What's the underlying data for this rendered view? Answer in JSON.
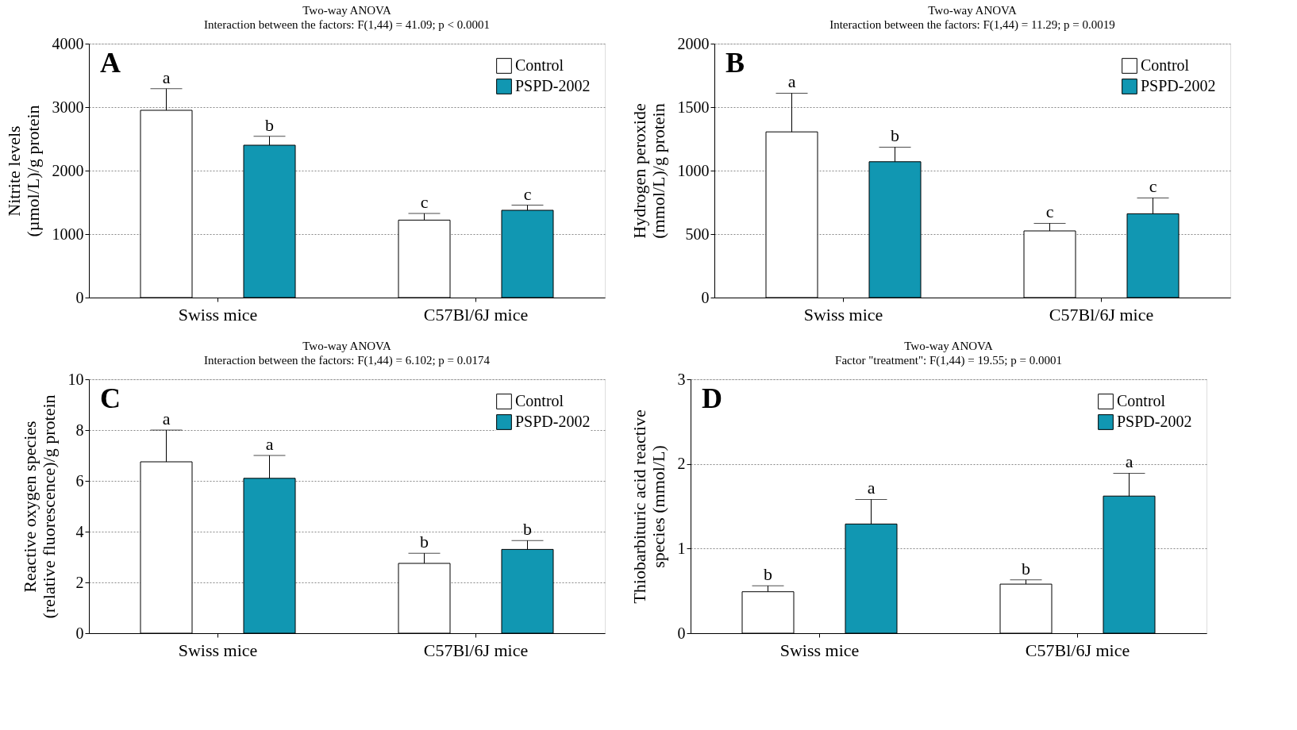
{
  "chart_data": [
    {
      "type": "bar",
      "title": "Two-way ANOVA",
      "subtitle": "Interaction between the factors: F(1,44) = 41.09; p < 0.0001",
      "ylabel": "Nitrite levels\n(µmol/L)/g protein",
      "categories": [
        "Swiss mice",
        "C57Bl/6J mice"
      ],
      "ylim": [
        0,
        4000
      ],
      "yticks": [
        0,
        1000,
        2000,
        3000,
        4000
      ],
      "grid": "y",
      "legend": "top right",
      "annotations": [
        "A"
      ],
      "series": [
        {
          "name": "Control",
          "color": "#ffffff",
          "values": [
            2950,
            1220
          ],
          "errors": [
            [
              2950,
              3290
            ],
            [
              1220,
              1325
            ]
          ],
          "value_labels": [
            "a",
            "c"
          ]
        },
        {
          "name": "PSPD-2002",
          "color": "#1197b2",
          "values": [
            2400,
            1375
          ],
          "errors": [
            [
              2400,
              2540
            ],
            [
              1375,
              1455
            ]
          ],
          "value_labels": [
            "b",
            "c"
          ]
        }
      ]
    },
    {
      "type": "bar",
      "title": "Two-way ANOVA",
      "subtitle": "Interaction between the factors: F(1,44) = 11.29; p = 0.0019",
      "ylabel": "Hydrogen peroxide\n(mmol/L)/g protein",
      "categories": [
        "Swiss mice",
        "C57Bl/6J mice"
      ],
      "ylim": [
        0,
        2000
      ],
      "yticks": [
        0,
        500,
        1000,
        1500,
        2000
      ],
      "grid": "y",
      "legend": "top right",
      "annotations": [
        "B"
      ],
      "series": [
        {
          "name": "Control",
          "color": "#ffffff",
          "values": [
            1305,
            525
          ],
          "errors": [
            [
              1305,
              1610
            ],
            [
              525,
              585
            ]
          ],
          "value_labels": [
            "a",
            "c"
          ]
        },
        {
          "name": "PSPD-2002",
          "color": "#1197b2",
          "values": [
            1070,
            660
          ],
          "errors": [
            [
              1070,
              1185
            ],
            [
              660,
              785
            ]
          ],
          "value_labels": [
            "b",
            "c"
          ]
        }
      ]
    },
    {
      "type": "bar",
      "title": "Two-way ANOVA",
      "subtitle": "Interaction between the factors: F(1,44) = 6.102; p = 0.0174",
      "ylabel": "Reactive oxygen species\n(relative fluorescence)/g protein",
      "categories": [
        "Swiss mice",
        "C57Bl/6J mice"
      ],
      "ylim": [
        0,
        10
      ],
      "yticks": [
        0,
        2,
        4,
        6,
        8,
        10
      ],
      "grid": "y",
      "legend": "top right",
      "annotations": [
        "C"
      ],
      "series": [
        {
          "name": "Control",
          "color": "#ffffff",
          "values": [
            6.75,
            2.75
          ],
          "errors": [
            [
              6.75,
              8.0
            ],
            [
              2.75,
              3.15
            ]
          ],
          "value_labels": [
            "a",
            "b"
          ]
        },
        {
          "name": "PSPD-2002",
          "color": "#1197b2",
          "values": [
            6.1,
            3.3
          ],
          "errors": [
            [
              6.1,
              7.0
            ],
            [
              3.3,
              3.65
            ]
          ],
          "value_labels": [
            "a",
            "b"
          ]
        }
      ]
    },
    {
      "type": "bar",
      "title": "Two-way ANOVA",
      "subtitle": "Factor \"treatment\": F(1,44) = 19.55; p = 0.0001",
      "ylabel": "Thiobarbituric acid reactive\nspecies (mmol/L)",
      "categories": [
        "Swiss mice",
        "C57Bl/6J mice"
      ],
      "ylim": [
        0,
        3
      ],
      "yticks": [
        0,
        1,
        2,
        3
      ],
      "grid": "y",
      "legend": "top right",
      "annotations": [
        "D"
      ],
      "series": [
        {
          "name": "Control",
          "color": "#ffffff",
          "values": [
            0.49,
            0.58
          ],
          "errors": [
            [
              0.49,
              0.56
            ],
            [
              0.58,
              0.63
            ]
          ],
          "value_labels": [
            "b",
            "b"
          ]
        },
        {
          "name": "PSPD-2002",
          "color": "#1197b2",
          "values": [
            1.29,
            1.62
          ],
          "errors": [
            [
              1.29,
              1.58
            ],
            [
              1.62,
              1.89
            ]
          ],
          "value_labels": [
            "a",
            "a"
          ]
        }
      ]
    }
  ]
}
